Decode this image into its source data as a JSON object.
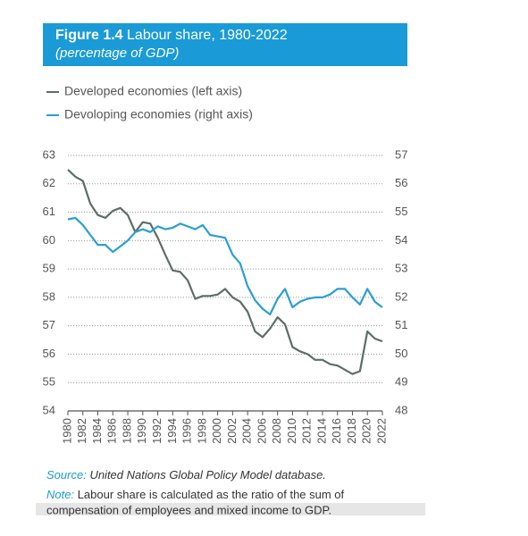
{
  "chart_data": {
    "type": "line",
    "title_label": "Figure 1.4",
    "title": "Labour share, 1980-2022",
    "subtitle": "(percentage of GDP)",
    "x": [
      1980,
      1981,
      1982,
      1983,
      1984,
      1985,
      1986,
      1987,
      1988,
      1989,
      1990,
      1991,
      1992,
      1993,
      1994,
      1995,
      1996,
      1997,
      1998,
      1999,
      2000,
      2001,
      2002,
      2003,
      2004,
      2005,
      2006,
      2007,
      2008,
      2009,
      2010,
      2011,
      2012,
      2013,
      2014,
      2015,
      2016,
      2017,
      2018,
      2019,
      2020,
      2021,
      2022
    ],
    "xlim": [
      1980,
      2022
    ],
    "xticks": [
      1980,
      1982,
      1984,
      1986,
      1988,
      1990,
      1992,
      1994,
      1996,
      1998,
      2000,
      2002,
      2004,
      2006,
      2008,
      2010,
      2012,
      2014,
      2016,
      2018,
      2020,
      2022
    ],
    "ylim": [
      54,
      63
    ],
    "yticks": [
      54,
      55,
      56,
      57,
      58,
      59,
      60,
      61,
      62,
      63
    ],
    "y2lim": [
      48,
      57
    ],
    "y2ticks": [
      48,
      49,
      50,
      51,
      52,
      53,
      54,
      55,
      56,
      57
    ],
    "grid": true,
    "series": [
      {
        "name": "Developed economies (left axis)",
        "color": "#5b6e67",
        "values": [
          62.5,
          62.25,
          62.1,
          61.3,
          60.9,
          60.8,
          61.05,
          61.15,
          60.9,
          60.3,
          60.65,
          60.6,
          60.1,
          59.5,
          58.95,
          58.9,
          58.6,
          57.95,
          58.05,
          58.05,
          58.1,
          58.3,
          58.0,
          57.85,
          57.5,
          56.8,
          56.6,
          56.9,
          57.3,
          57.05,
          56.25,
          56.1,
          56.0,
          55.8,
          55.8,
          55.65,
          55.6,
          55.45,
          55.3,
          55.4,
          56.8,
          56.55,
          56.45
        ]
      },
      {
        "name": "Devoloping economies (right axis)",
        "color": "#2a9fd0",
        "axis": "y2",
        "values": [
          54.75,
          54.8,
          54.55,
          54.2,
          53.85,
          53.85,
          53.6,
          53.8,
          54.0,
          54.3,
          54.4,
          54.3,
          54.5,
          54.4,
          54.45,
          54.6,
          54.5,
          54.4,
          54.55,
          54.2,
          54.15,
          54.1,
          53.5,
          53.2,
          52.4,
          51.9,
          51.6,
          51.4,
          51.95,
          52.3,
          51.65,
          51.85,
          51.95,
          52.0,
          52.0,
          52.1,
          52.3,
          52.3,
          52.0,
          51.75,
          52.3,
          51.85,
          51.65
        ]
      }
    ],
    "source_label": "Source:",
    "source": "United Nations Global Policy Model database.",
    "note_label": "Note:",
    "note": [
      "Labour share is calculated as the ratio of the sum of",
      "compensation of employees and mixed income to GDP."
    ]
  }
}
